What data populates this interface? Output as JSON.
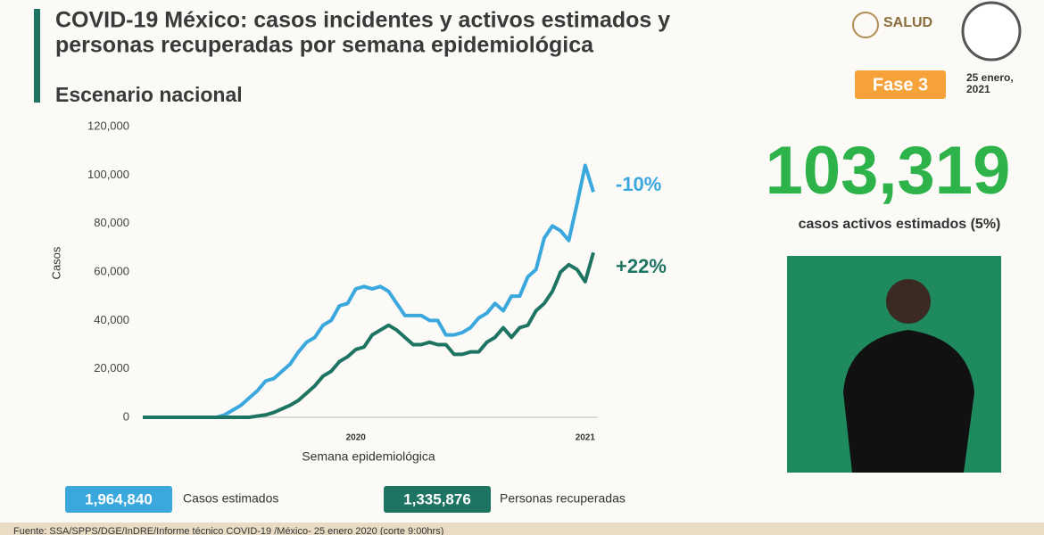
{
  "header": {
    "title_lines": [
      "COVID-19 México: casos incidentes y activos estimados y",
      "personas recuperadas por semana epidemiológica"
    ],
    "subtitle": "Escenario nacional",
    "logo": "SALUD",
    "phase": "Fase 3",
    "date_lines": [
      "25 enero,",
      "2021"
    ]
  },
  "kpi": {
    "value_label": "103,319",
    "caption": "casos activos estimados (5%)"
  },
  "footer": "Fuente: SSA/SPPS/DGE/InDRE/Informe técnico COVID-19 /México- 25 enero 2020 (corte 9:00hrs)",
  "chart_data": {
    "type": "line",
    "y_label": "Casos",
    "x_label": "Semana epidemiológica",
    "categories": [
      null,
      null,
      null,
      null,
      null,
      null,
      null,
      null,
      null,
      null,
      null,
      null,
      null,
      null,
      null,
      null,
      null,
      null,
      null,
      null,
      null,
      null,
      null,
      null,
      null,
      null,
      null,
      null,
      null,
      null,
      null,
      null,
      null,
      null,
      null,
      null,
      null,
      null,
      null,
      null,
      null,
      null,
      null,
      null,
      null,
      null,
      null,
      null,
      null,
      null,
      null,
      null,
      null,
      null,
      null,
      null
    ],
    "x_groups": [
      {
        "label": "2020",
        "count": 53
      },
      {
        "label": "2021",
        "count": 3
      }
    ],
    "ylim": [
      0,
      120000
    ],
    "yticks": [
      0,
      {
        "value": 20000,
        "label": "20,000"
      },
      {
        "value": 40000,
        "label": "40,000"
      },
      {
        "value": 60000,
        "label": "60,000"
      },
      {
        "value": 80000,
        "label": "80,000"
      },
      {
        "value": 100000,
        "label": "100,000"
      },
      {
        "value": 120000,
        "label": "120,000"
      }
    ],
    "series": [
      {
        "name": "Casos estimados",
        "total_label": "1,964,840",
        "color": "#3aa7dd",
        "change_label": "-10%",
        "values": [
          0,
          0,
          0,
          0,
          0,
          0,
          0,
          0,
          0,
          0,
          1000,
          3000,
          5000,
          8000,
          11000,
          15000,
          16000,
          19000,
          22000,
          27000,
          31000,
          33000,
          38000,
          40000,
          46000,
          47000,
          53000,
          54000,
          53000,
          54000,
          52000,
          47000,
          42000,
          42000,
          42000,
          40000,
          40000,
          34000,
          34000,
          35000,
          37000,
          41000,
          43000,
          47000,
          44000,
          50000,
          50000,
          58000,
          61000,
          74000,
          79000,
          77000,
          73000,
          88000,
          104000,
          93000
        ]
      },
      {
        "name": "Personas recuperadas",
        "total_label": "1,335,876",
        "color": "#1e7462",
        "change_label": "+22%",
        "values": [
          0,
          0,
          0,
          0,
          0,
          0,
          0,
          0,
          0,
          0,
          0,
          0,
          0,
          0,
          500,
          1000,
          2000,
          3500,
          5000,
          7000,
          10000,
          13000,
          17000,
          19000,
          23000,
          25000,
          28000,
          29000,
          34000,
          36000,
          38000,
          36000,
          33000,
          30000,
          30000,
          31000,
          30000,
          30000,
          26000,
          26000,
          27000,
          27000,
          31000,
          33000,
          37000,
          33000,
          37000,
          38000,
          44000,
          47000,
          52000,
          60000,
          63000,
          61000,
          56000,
          68000
        ]
      }
    ]
  }
}
